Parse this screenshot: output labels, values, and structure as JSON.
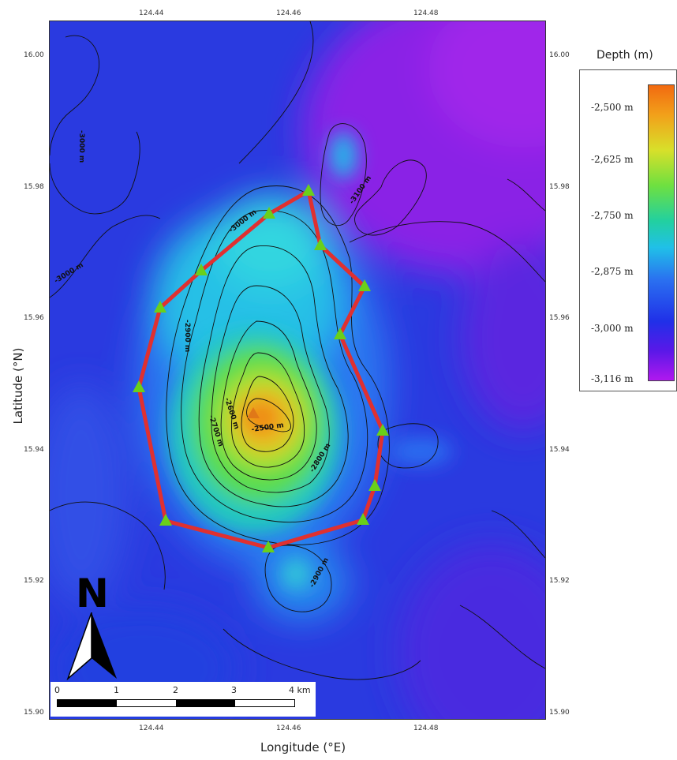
{
  "axes": {
    "x_title": "Longitude (°E)",
    "y_title": "Latitude (°N)",
    "x_ticks": [
      "124.44",
      "124.46",
      "124.48"
    ],
    "y_ticks": [
      "16.00",
      "15.98",
      "15.96",
      "15.94",
      "15.92",
      "15.90"
    ]
  },
  "legend": {
    "title": "Depth (m)",
    "labels": [
      "-2,500 m",
      "-2,625 m",
      "-2,750 m",
      "-2,875 m",
      "-3,000 m",
      "-3,116 m"
    ],
    "colors": {
      "shallow": "#f26a10",
      "mid": "#6ee040",
      "deep": "#2030e8",
      "deepest": "#b018ee"
    }
  },
  "contour_labels": [
    "-3000 m",
    "-3000 m",
    "-3000 m",
    "-3100 m",
    "-2900 m",
    "-2700 m",
    "-2600 m",
    "-2500 m",
    "-2800 m",
    "-2900 m"
  ],
  "north_arrow": {
    "letter": "N"
  },
  "scale_bar": {
    "labels": [
      "0",
      "1",
      "2",
      "3",
      "4 km"
    ]
  },
  "survey": {
    "line_color": "#e03030",
    "marker_color": "#6ad01a",
    "summit_marker_color": "#e07818"
  }
}
